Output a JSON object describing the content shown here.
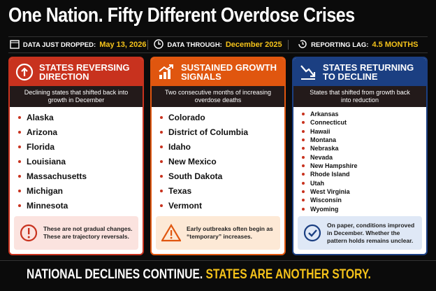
{
  "header": {
    "title": "One Nation. Fifty Different Overdose Crises"
  },
  "info_bar": [
    {
      "label": "DATA JUST DROPPED:",
      "value": "May 13, 2026"
    },
    {
      "label": "DATA THROUGH:",
      "value": "December 2025"
    },
    {
      "label": "REPORTING LAG:",
      "value": "4.5 MONTHS"
    }
  ],
  "panels": [
    {
      "title": "STATES REVERSING DIRECTION",
      "subtitle": "Declining states that shifted back into growth in December",
      "states": [
        "Alaska",
        "Arizona",
        "Florida",
        "Louisiana",
        "Massachusetts",
        "Michigan",
        "Minnesota"
      ],
      "note": "These are not gradual changes. These are trajectory reversals."
    },
    {
      "title": "SUSTAINED GROWTH SIGNALS",
      "subtitle": "Two consecutive months of increasing overdose deaths",
      "states": [
        "Colorado",
        "District of Columbia",
        "Idaho",
        "New Mexico",
        "South Dakota",
        "Texas",
        "Vermont"
      ],
      "note": "Early outbreaks often begin as “temporary” increases."
    },
    {
      "title": "STATES RETURNING TO DECLINE",
      "subtitle": "States that shifted from growth back into reduction",
      "states": [
        "Arkansas",
        "Connecticut",
        "Hawaii",
        "Montana",
        "Nebraska",
        "Nevada",
        "New Hampshire",
        "Rhode Island",
        "Utah",
        "West Virginia",
        "Wisconsin",
        "Wyoming"
      ],
      "note": "On paper, conditions improved in December. Whether the pattern holds remains unclear."
    }
  ],
  "footer": {
    "part1": "NATIONAL DECLINES CONTINUE.",
    "part2": "STATES ARE ANOTHER STORY."
  }
}
